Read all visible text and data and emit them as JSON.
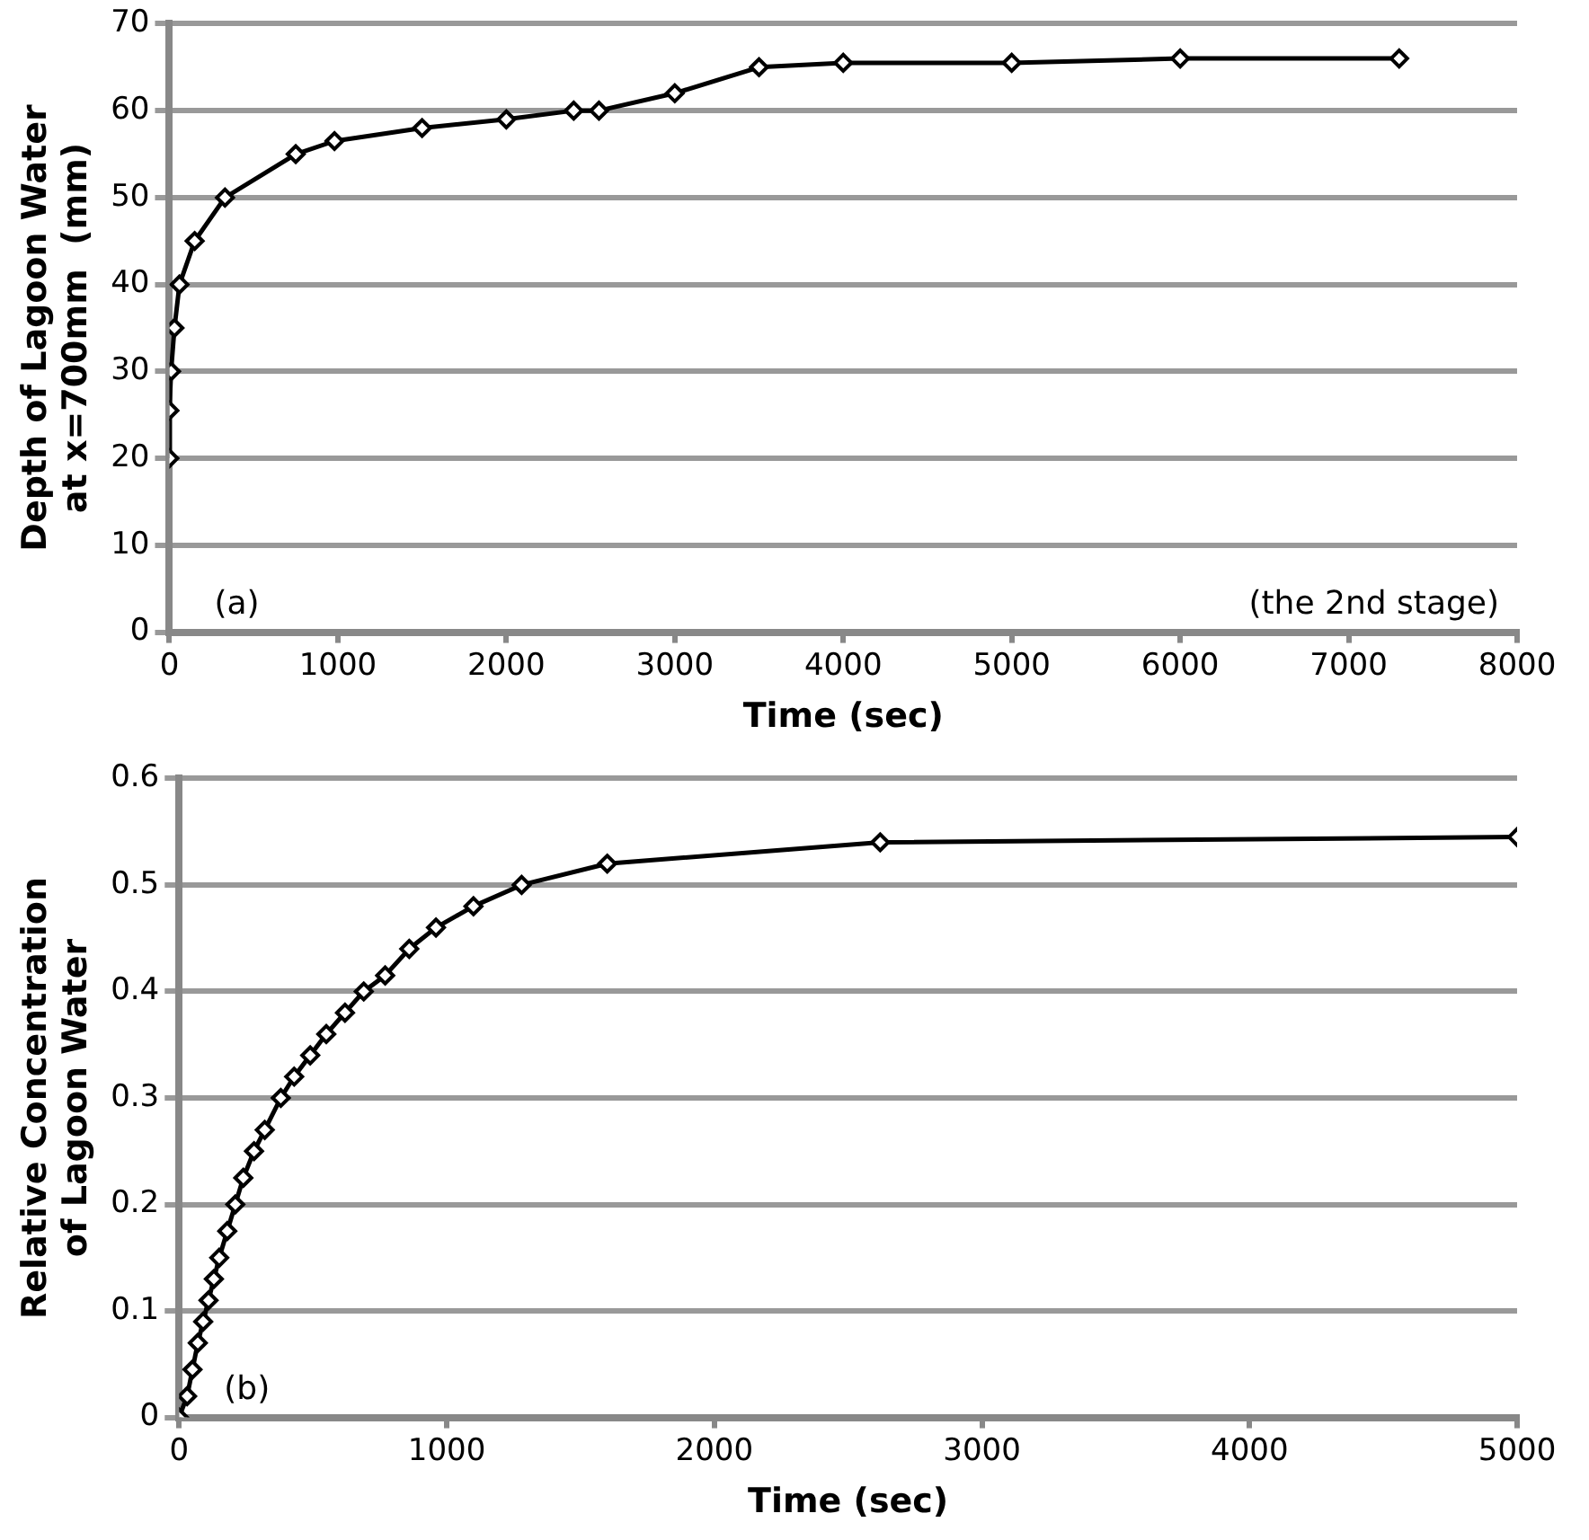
{
  "chart_data": [
    {
      "type": "line",
      "xlabel": "Time (sec)",
      "ylabel": "Depth of Lagoon Water at x=700mm  (mm)",
      "annotations": [
        "(a)",
        "(the 2nd stage)"
      ],
      "series": [
        {
          "color": "#000000",
          "x": [
            0,
            0,
            10,
            30,
            60,
            150,
            330,
            750,
            980,
            1500,
            2000,
            2400,
            2550,
            3000,
            3500,
            4000,
            5000,
            6000,
            7300
          ],
          "values": [
            20,
            25.5,
            30,
            35,
            40,
            45,
            50,
            55,
            56.5,
            58,
            59,
            60,
            60,
            62,
            65,
            65.5,
            65.5,
            66,
            66
          ]
        }
      ],
      "xlim": [
        0,
        8000
      ],
      "xticks": [
        0,
        1000,
        2000,
        3000,
        4000,
        5000,
        6000,
        7000,
        8000
      ],
      "ylim": [
        0,
        70
      ],
      "yticks": [
        0,
        10,
        20,
        30,
        40,
        50,
        60,
        70
      ],
      "grid": "y",
      "legend": false,
      "marker": "diamond",
      "line_style": "solid"
    },
    {
      "type": "line",
      "xlabel": "Time (sec)",
      "ylabel": "Relative Concentration of Lagoon Water",
      "annotations": [
        "(b)"
      ],
      "series": [
        {
          "color": "#000000",
          "x": [
            0,
            30,
            50,
            70,
            90,
            110,
            130,
            150,
            180,
            210,
            240,
            280,
            320,
            380,
            430,
            490,
            550,
            620,
            690,
            770,
            860,
            960,
            1100,
            1280,
            1600,
            2620,
            5000
          ],
          "values": [
            0,
            0.02,
            0.045,
            0.07,
            0.09,
            0.11,
            0.13,
            0.15,
            0.175,
            0.2,
            0.225,
            0.25,
            0.27,
            0.3,
            0.32,
            0.34,
            0.36,
            0.38,
            0.4,
            0.415,
            0.44,
            0.46,
            0.48,
            0.5,
            0.52,
            0.54,
            0.545
          ]
        }
      ],
      "xlim": [
        0,
        5000
      ],
      "xticks": [
        0,
        1000,
        2000,
        3000,
        4000,
        5000
      ],
      "ylim": [
        0,
        0.6
      ],
      "yticks": [
        0,
        0.1,
        0.2,
        0.3,
        0.4,
        0.5,
        0.6
      ],
      "grid": "y",
      "legend": false,
      "marker": "diamond",
      "line_style": "solid"
    }
  ]
}
